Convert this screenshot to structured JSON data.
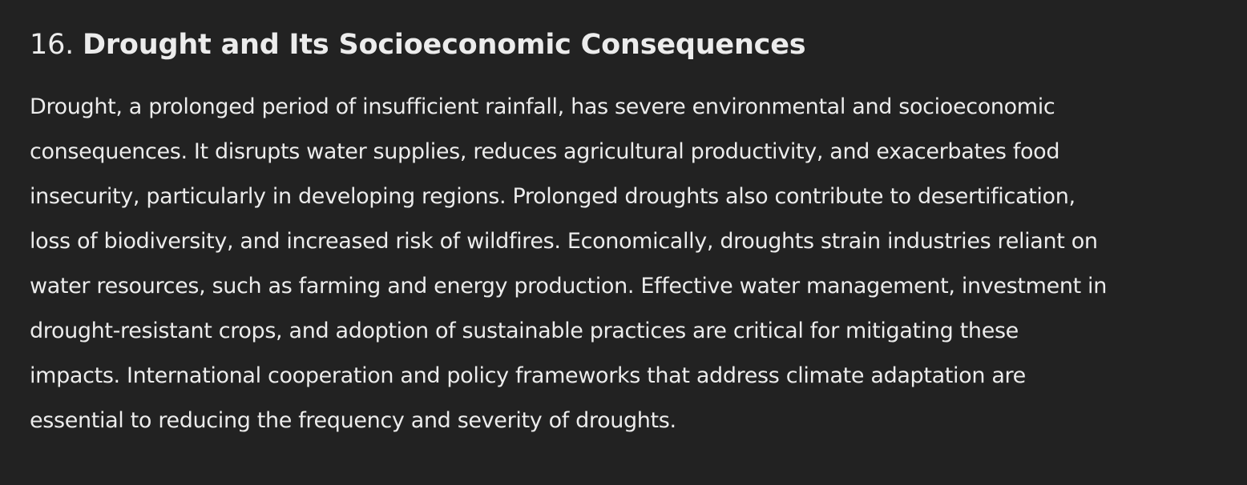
{
  "section": {
    "number": "16.",
    "title": "Drought and Its Socioeconomic Consequences"
  },
  "paragraph": {
    "lines": [
      "Drought, a prolonged period of insufficient rainfall, has severe environmental and socioeconomic",
      "consequences. It disrupts water supplies, reduces agricultural productivity, and exacerbates food",
      "insecurity, particularly in developing regions. Prolonged droughts also contribute to desertification,",
      "loss of biodiversity, and increased risk of wildfires. Economically, droughts strain industries reliant on",
      "water resources, such as farming and energy production. Effective water management, investment in",
      "drought-resistant crops, and adoption of sustainable practices are critical for mitigating these",
      "impacts. International cooperation and policy frameworks that address climate adaptation are",
      "essential to reducing the frequency and severity of droughts."
    ]
  },
  "colors": {
    "background": "#222222",
    "text": "#ececec"
  }
}
